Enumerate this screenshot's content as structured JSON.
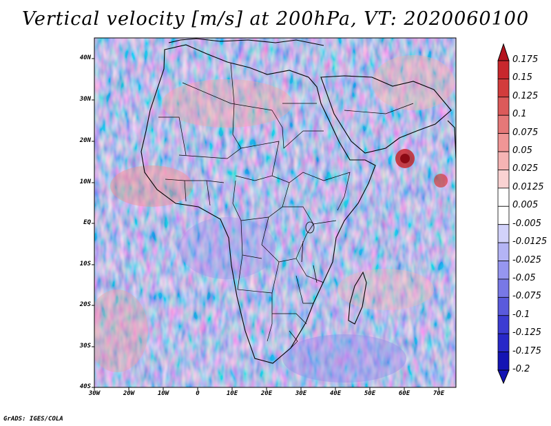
{
  "title": "Vertical velocity [m/s] at 200hPa, VT: 2020060100",
  "credit": "GrADS: IGES/COLA",
  "map": {
    "lat_labels": [
      "40N",
      "30N",
      "20N",
      "10N",
      "EQ",
      "10S",
      "20S",
      "30S",
      "40S"
    ],
    "lon_labels": [
      "30W",
      "20W",
      "10W",
      "0",
      "10E",
      "20E",
      "30E",
      "40E",
      "50E",
      "60E",
      "70E"
    ],
    "lat_range": [
      -40,
      45
    ],
    "lon_range": [
      -30,
      75
    ],
    "region": "Africa and Arabian Sea"
  },
  "colorbar": {
    "labels": [
      "0.175",
      "0.15",
      "0.125",
      "0.1",
      "0.075",
      "0.05",
      "0.025",
      "0.0125",
      "0.005",
      "-0.005",
      "-0.0125",
      "-0.025",
      "-0.05",
      "-0.075",
      "-0.1",
      "-0.125",
      "-0.175",
      "-0.2"
    ],
    "colors": [
      "#b4141e",
      "#c8282d",
      "#d23c3c",
      "#dc5a5a",
      "#e67878",
      "#f09696",
      "#f5b4b4",
      "#fad2d2",
      "#ffffff",
      "#ffffff",
      "#d2d2fa",
      "#b4b4f5",
      "#9696f0",
      "#7878e6",
      "#5a5adc",
      "#3c3cd2",
      "#2828c8",
      "#1414b4"
    ]
  }
}
